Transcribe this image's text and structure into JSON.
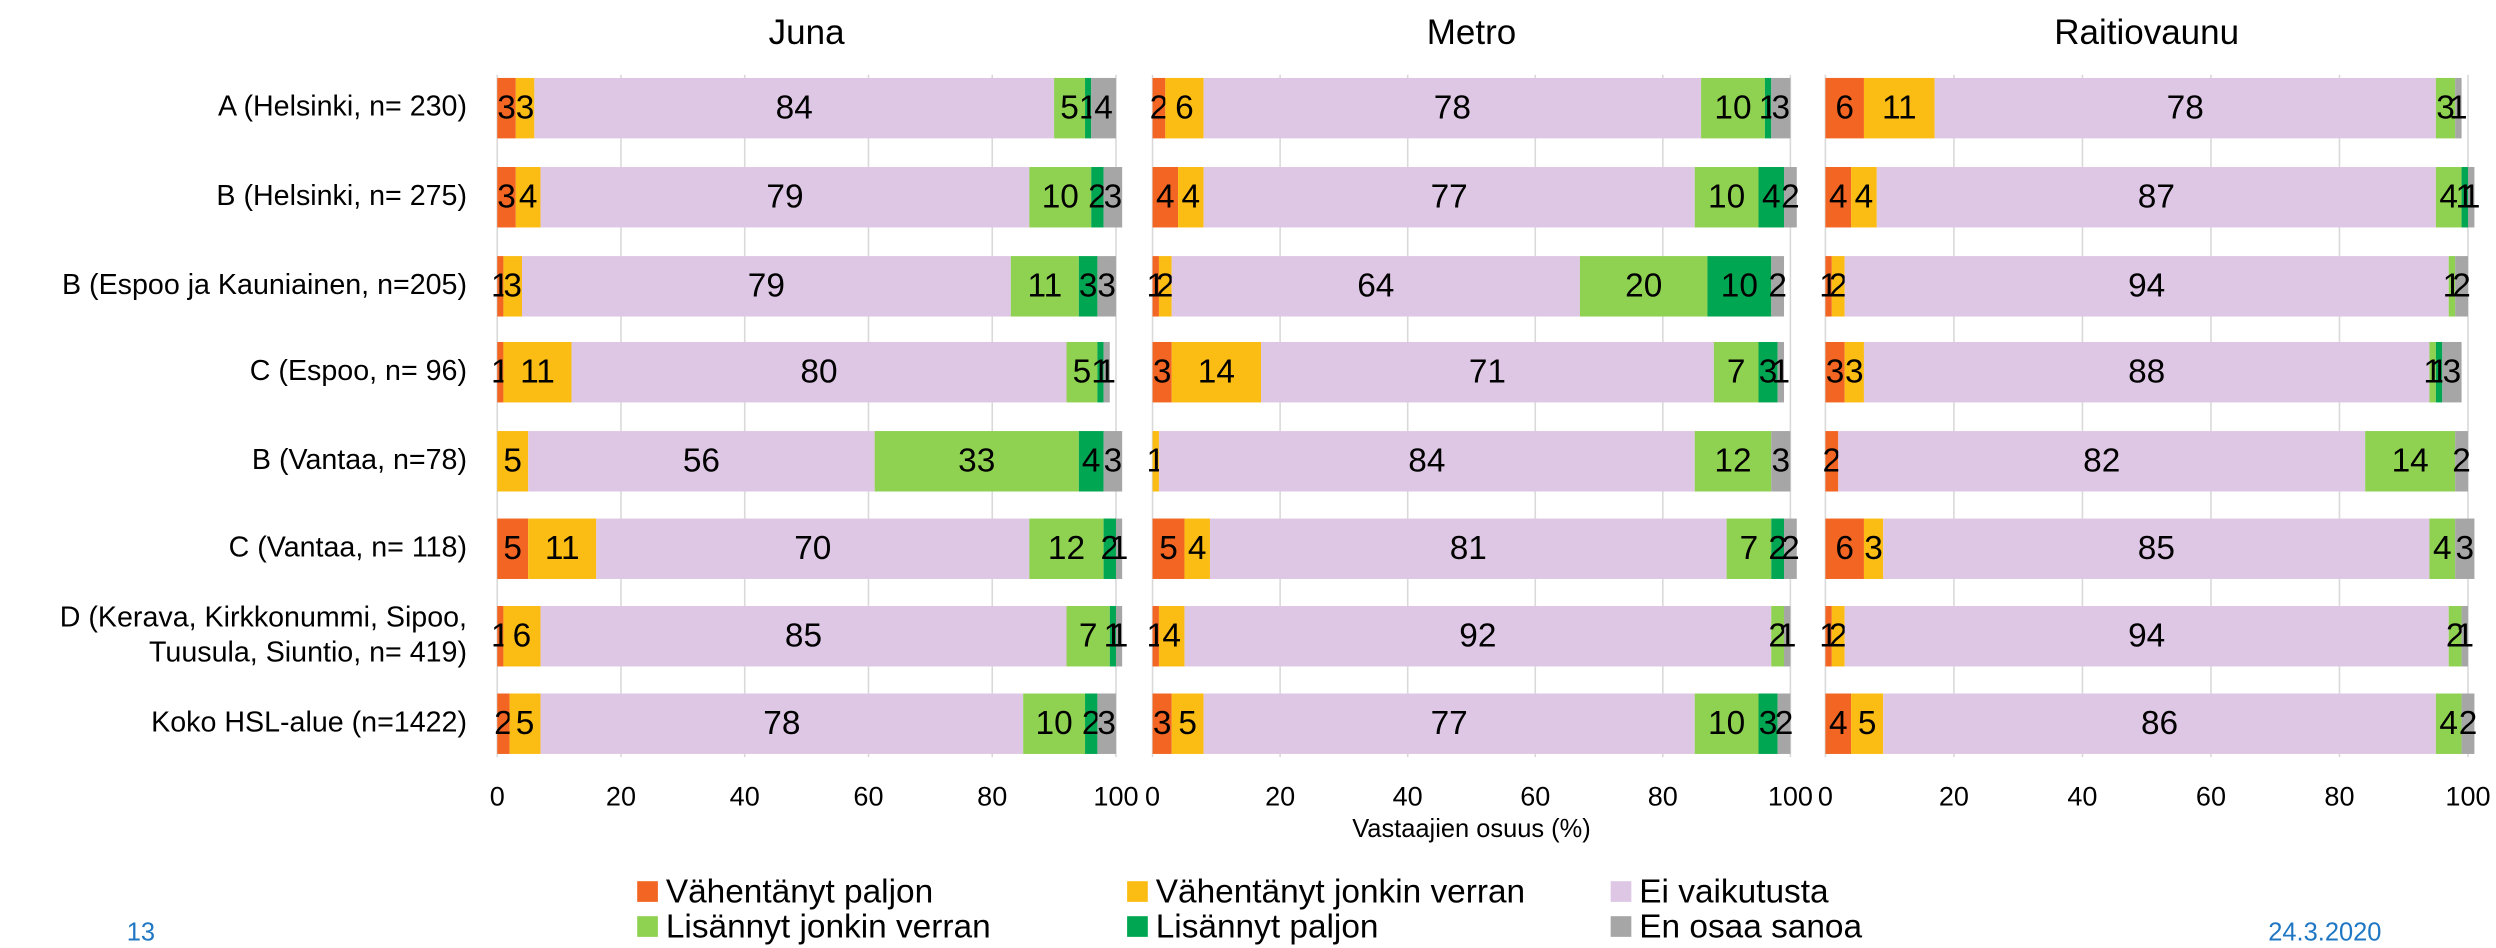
{
  "chart_data": [
    {
      "type": "bar",
      "orientation": "horizontal",
      "stacked": true,
      "title": "Juna",
      "categories": [
        "A (Helsinki, n= 230)",
        "B (Helsinki, n= 275)",
        "B (Espoo ja Kauniainen, n=205)",
        "C (Espoo, n= 96)",
        "B (Vantaa, n=78)",
        "C (Vantaa, n= 118)",
        "D (Kerava, Kirkkonummi, Sipoo,\nTuusula, Siuntio, n= 419)",
        "Koko HSL-alue (n=1422)"
      ],
      "xlim": [
        0,
        100
      ],
      "xticks": [
        0,
        20,
        40,
        60,
        80,
        100
      ],
      "grid": true,
      "series": [
        {
          "name": "Vähentänyt paljon",
          "color": "#f26522",
          "values": [
            3,
            3,
            1,
            1,
            null,
            5,
            1,
            2
          ]
        },
        {
          "name": "Vähentänyt jonkin verran",
          "color": "#fbbc13",
          "values": [
            3,
            4,
            3,
            11,
            5,
            11,
            6,
            5
          ]
        },
        {
          "name": "Ei vaikutusta",
          "color": "#dec7e5",
          "values": [
            84,
            79,
            79,
            80,
            56,
            70,
            85,
            78
          ]
        },
        {
          "name": "Lisännyt jonkin verran",
          "color": "#8fd150",
          "values": [
            5,
            10,
            11,
            5,
            33,
            12,
            7,
            10
          ]
        },
        {
          "name": "Lisännyt paljon",
          "color": "#00a651",
          "values": [
            1,
            2,
            3,
            1,
            4,
            2,
            1,
            2
          ]
        },
        {
          "name": "En osaa sanoa",
          "color": "#a6a6a6",
          "values": [
            4,
            3,
            3,
            1,
            3,
            1,
            1,
            3
          ]
        }
      ]
    },
    {
      "type": "bar",
      "orientation": "horizontal",
      "stacked": true,
      "title": "Metro",
      "xlabel": "Vastaajien osuus (%)",
      "xlim": [
        0,
        100
      ],
      "xticks": [
        0,
        20,
        40,
        60,
        80,
        100
      ],
      "grid": true,
      "series": [
        {
          "values": [
            2,
            4,
            1,
            3,
            null,
            5,
            1,
            3
          ]
        },
        {
          "values": [
            6,
            4,
            2,
            14,
            1,
            4,
            4,
            5
          ]
        },
        {
          "values": [
            78,
            77,
            64,
            71,
            84,
            81,
            92,
            77
          ]
        },
        {
          "values": [
            10,
            10,
            20,
            7,
            12,
            7,
            2,
            10
          ]
        },
        {
          "values": [
            1,
            4,
            10,
            3,
            null,
            2,
            null,
            3
          ]
        },
        {
          "values": [
            3,
            2,
            2,
            1,
            3,
            2,
            1,
            2
          ]
        }
      ]
    },
    {
      "type": "bar",
      "orientation": "horizontal",
      "stacked": true,
      "title": "Raitiovaunu",
      "xlim": [
        0,
        100
      ],
      "xticks": [
        0,
        20,
        40,
        60,
        80,
        100
      ],
      "grid": true,
      "series": [
        {
          "values": [
            6,
            4,
            1,
            3,
            2,
            6,
            1,
            4
          ]
        },
        {
          "values": [
            11,
            4,
            2,
            3,
            null,
            3,
            2,
            5
          ]
        },
        {
          "values": [
            78,
            87,
            94,
            88,
            82,
            85,
            94,
            86
          ]
        },
        {
          "values": [
            3,
            4,
            1,
            1,
            14,
            4,
            2,
            4
          ]
        },
        {
          "values": [
            null,
            1,
            null,
            1,
            null,
            null,
            null,
            null
          ]
        },
        {
          "values": [
            1,
            1,
            2,
            3,
            2,
            3,
            1,
            2
          ]
        }
      ]
    }
  ],
  "page_number": "13",
  "date": "24.3.2020"
}
